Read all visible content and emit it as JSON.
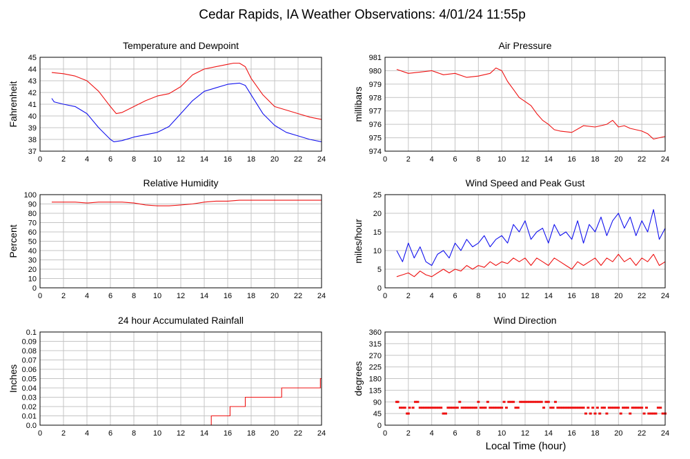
{
  "page": {
    "title": "Cedar Rapids, IA Weather Observations: 4/01/24 11:55p",
    "xlabel": "Local Time (hour)"
  },
  "colors": {
    "red": "#ee1111",
    "blue": "#1111ee",
    "grid": "#c4c4c4",
    "frame": "#000000"
  },
  "chart_data": [
    {
      "id": "temp",
      "type": "line",
      "title": "Temperature and Dewpoint",
      "ylabel": "Fahrenheit",
      "xlim": [
        0,
        24
      ],
      "ylim": [
        37,
        45
      ],
      "xticks": [
        0,
        2,
        4,
        6,
        8,
        10,
        12,
        14,
        16,
        18,
        20,
        22,
        24
      ],
      "yticks": [
        37,
        38,
        39,
        40,
        41,
        42,
        43,
        44,
        45
      ],
      "series": [
        {
          "color": "#ee1111",
          "step": false,
          "x": [
            1,
            2,
            3,
            4,
            5,
            6,
            6.5,
            7,
            8,
            9,
            10,
            11,
            12,
            13,
            14,
            15,
            16,
            16.5,
            17,
            17.5,
            18,
            19,
            20,
            21,
            22,
            23,
            24
          ],
          "y": [
            43.7,
            43.6,
            43.4,
            43.0,
            42.1,
            40.8,
            40.2,
            40.3,
            40.8,
            41.3,
            41.7,
            41.9,
            42.5,
            43.5,
            44.0,
            44.2,
            44.4,
            44.5,
            44.5,
            44.2,
            43.2,
            41.8,
            40.8,
            40.5,
            40.2,
            39.9,
            39.7
          ]
        },
        {
          "color": "#1111ee",
          "step": false,
          "x": [
            1,
            1.2,
            2,
            3,
            4,
            5,
            6,
            6.3,
            7,
            8,
            9,
            10,
            11,
            12,
            13,
            14,
            15,
            16,
            17,
            17.5,
            18,
            19,
            20,
            21,
            22,
            23,
            24
          ],
          "y": [
            41.5,
            41.2,
            41.0,
            40.8,
            40.2,
            39.0,
            38.0,
            37.8,
            37.9,
            38.2,
            38.4,
            38.6,
            39.1,
            40.2,
            41.3,
            42.1,
            42.4,
            42.7,
            42.8,
            42.6,
            41.8,
            40.2,
            39.2,
            38.6,
            38.3,
            38.0,
            37.8
          ]
        }
      ]
    },
    {
      "id": "pressure",
      "type": "line",
      "title": "Air Pressure",
      "ylabel": "millibars",
      "xlim": [
        0,
        24
      ],
      "ylim": [
        974,
        981
      ],
      "xticks": [
        0,
        2,
        4,
        6,
        8,
        10,
        12,
        14,
        16,
        18,
        20,
        22,
        24
      ],
      "yticks": [
        974,
        975,
        976,
        977,
        978,
        979,
        980,
        981
      ],
      "series": [
        {
          "color": "#ee1111",
          "step": false,
          "x": [
            1,
            2,
            3,
            4,
            5,
            6,
            7,
            8,
            9,
            9.5,
            10,
            10.5,
            11,
            11.5,
            12,
            12.5,
            13,
            13.5,
            14,
            14.5,
            15,
            16,
            17,
            18,
            19,
            19.5,
            20,
            20.5,
            21,
            22,
            22.5,
            23,
            24
          ],
          "y": [
            980.1,
            979.8,
            979.9,
            980.0,
            979.7,
            979.8,
            979.5,
            979.6,
            979.8,
            980.2,
            980.0,
            979.2,
            978.6,
            978.0,
            977.7,
            977.4,
            976.8,
            976.3,
            976.0,
            975.6,
            975.5,
            975.4,
            975.9,
            975.8,
            976.0,
            976.3,
            975.8,
            975.9,
            975.7,
            975.5,
            975.3,
            974.9,
            975.1
          ]
        }
      ]
    },
    {
      "id": "humidity",
      "type": "line",
      "title": "Relative Humidity",
      "ylabel": "Percent",
      "xlim": [
        0,
        24
      ],
      "ylim": [
        0,
        100
      ],
      "xticks": [
        0,
        2,
        4,
        6,
        8,
        10,
        12,
        14,
        16,
        18,
        20,
        22,
        24
      ],
      "yticks": [
        0,
        10,
        20,
        30,
        40,
        50,
        60,
        70,
        80,
        90,
        100
      ],
      "series": [
        {
          "color": "#ee1111",
          "step": false,
          "x": [
            1,
            2,
            3,
            4,
            5,
            6,
            7,
            8,
            9,
            10,
            11,
            12,
            13,
            14,
            15,
            16,
            17,
            18,
            19,
            20,
            21,
            22,
            23,
            24
          ],
          "y": [
            92,
            92,
            92,
            91,
            92,
            92,
            92,
            91,
            89,
            88,
            88,
            89,
            90,
            92,
            93,
            93,
            94,
            94,
            94,
            94,
            94,
            94,
            94,
            94
          ]
        }
      ]
    },
    {
      "id": "wind",
      "type": "line",
      "title": "Wind Speed and Peak Gust",
      "ylabel": "miles/hour",
      "xlim": [
        0,
        24
      ],
      "ylim": [
        0,
        25
      ],
      "xticks": [
        0,
        2,
        4,
        6,
        8,
        10,
        12,
        14,
        16,
        18,
        20,
        22,
        24
      ],
      "yticks": [
        0,
        5,
        10,
        15,
        20,
        25
      ],
      "series": [
        {
          "color": "#1111ee",
          "step": false,
          "x": [
            1,
            1.5,
            2,
            2.5,
            3,
            3.5,
            4,
            4.5,
            5,
            5.5,
            6,
            6.5,
            7,
            7.5,
            8,
            8.5,
            9,
            9.5,
            10,
            10.5,
            11,
            11.5,
            12,
            12.5,
            13,
            13.5,
            14,
            14.5,
            15,
            15.5,
            16,
            16.5,
            17,
            17.5,
            18,
            18.5,
            19,
            19.5,
            20,
            20.5,
            21,
            21.5,
            22,
            22.5,
            23,
            23.5,
            24
          ],
          "y": [
            10,
            7,
            12,
            8,
            11,
            7,
            6,
            9,
            10,
            8,
            12,
            10,
            13,
            11,
            12,
            14,
            11,
            13,
            14,
            12,
            17,
            15,
            18,
            13,
            15,
            16,
            12,
            17,
            14,
            15,
            13,
            18,
            12,
            17,
            15,
            19,
            14,
            18,
            20,
            16,
            19,
            14,
            18,
            15,
            21,
            13,
            16
          ]
        },
        {
          "color": "#ee1111",
          "step": false,
          "x": [
            1,
            1.5,
            2,
            2.5,
            3,
            3.5,
            4,
            4.5,
            5,
            5.5,
            6,
            6.5,
            7,
            7.5,
            8,
            8.5,
            9,
            9.5,
            10,
            10.5,
            11,
            11.5,
            12,
            12.5,
            13,
            13.5,
            14,
            14.5,
            15,
            15.5,
            16,
            16.5,
            17,
            17.5,
            18,
            18.5,
            19,
            19.5,
            20,
            20.5,
            21,
            21.5,
            22,
            22.5,
            23,
            23.5,
            24
          ],
          "y": [
            3,
            3.5,
            4,
            3,
            4.5,
            3.5,
            3,
            4,
            5,
            4,
            5,
            4.5,
            6,
            5,
            6,
            5.5,
            7,
            6,
            7,
            6.5,
            8,
            7,
            8,
            6,
            8,
            7,
            6,
            8,
            7,
            6,
            5,
            7,
            6,
            7,
            8,
            6,
            8,
            7,
            9,
            7,
            8,
            6,
            8,
            7,
            9,
            6,
            7
          ]
        }
      ]
    },
    {
      "id": "rain",
      "type": "line",
      "title": "24 hour Accumulated Rainfall",
      "ylabel": "Inches",
      "xlim": [
        0,
        24
      ],
      "ylim": [
        0,
        0.1
      ],
      "xticks": [
        0,
        2,
        4,
        6,
        8,
        10,
        12,
        14,
        16,
        18,
        20,
        22,
        24
      ],
      "yticks": [
        "0.0",
        "0.01",
        "0.02",
        "0.03",
        "0.04",
        "0.05",
        "0.06",
        "0.07",
        "0.08",
        "0.09",
        "0.1"
      ],
      "series": [
        {
          "color": "#ee1111",
          "step": true,
          "x": [
            1,
            14.6,
            16.2,
            17.5,
            20.6,
            23.9,
            24
          ],
          "y": [
            0,
            0.01,
            0.02,
            0.03,
            0.04,
            0.05,
            0.05
          ]
        }
      ]
    },
    {
      "id": "winddir",
      "type": "scatter",
      "title": "Wind Direction",
      "ylabel": "degrees",
      "xlim": [
        0,
        24
      ],
      "ylim": [
        0,
        360
      ],
      "xticks": [
        0,
        2,
        4,
        6,
        8,
        10,
        12,
        14,
        16,
        18,
        20,
        22,
        24
      ],
      "yticks": [
        0,
        45,
        90,
        135,
        180,
        225,
        270,
        315,
        360
      ],
      "series": [
        {
          "color": "#ee1111",
          "x": [
            1.0,
            1.1,
            1.3,
            1.5,
            1.7,
            1.9,
            2.0,
            2.1,
            2.4,
            2.6,
            2.8,
            3.0,
            3.2,
            3.4,
            3.6,
            3.8,
            4.0,
            4.2,
            4.4,
            4.6,
            4.8,
            5.0,
            5.2,
            5.4,
            5.6,
            5.8,
            6.0,
            6.2,
            6.4,
            6.6,
            6.8,
            7.0,
            7.2,
            7.4,
            7.6,
            7.8,
            8.0,
            8.2,
            8.4,
            8.6,
            8.8,
            9.0,
            9.2,
            9.4,
            9.6,
            9.8,
            10.0,
            10.2,
            10.4,
            10.6,
            10.8,
            11.0,
            11.2,
            11.4,
            11.6,
            11.8,
            12.0,
            12.2,
            12.4,
            12.6,
            12.8,
            13.0,
            13.2,
            13.4,
            13.6,
            13.8,
            14.0,
            14.2,
            14.4,
            14.6,
            14.8,
            15.0,
            15.2,
            15.4,
            15.6,
            15.8,
            16.0,
            16.2,
            16.4,
            16.6,
            16.8,
            17.0,
            17.2,
            17.4,
            17.6,
            17.8,
            18.0,
            18.2,
            18.4,
            18.6,
            18.8,
            19.0,
            19.2,
            19.4,
            19.6,
            19.8,
            20.0,
            20.2,
            20.4,
            20.6,
            20.8,
            21.0,
            21.2,
            21.4,
            21.6,
            21.8,
            22.0,
            22.2,
            22.4,
            22.6,
            22.8,
            23.0,
            23.2,
            23.4,
            23.6,
            23.8,
            24.0
          ],
          "y": [
            90,
            90,
            67.5,
            67.5,
            67.5,
            45,
            45,
            67.5,
            67.5,
            90,
            90,
            67.5,
            67.5,
            67.5,
            67.5,
            67.5,
            67.5,
            67.5,
            67.5,
            67.5,
            67.5,
            45,
            45,
            67.5,
            67.5,
            67.5,
            67.5,
            67.5,
            90,
            67.5,
            67.5,
            67.5,
            67.5,
            67.5,
            67.5,
            67.5,
            90,
            67.5,
            67.5,
            67.5,
            90,
            67.5,
            67.5,
            67.5,
            67.5,
            67.5,
            67.5,
            90,
            67.5,
            90,
            90,
            90,
            67.5,
            67.5,
            90,
            90,
            90,
            90,
            90,
            90,
            90,
            90,
            90,
            90,
            67.5,
            90,
            90,
            67.5,
            67.5,
            90,
            67.5,
            67.5,
            67.5,
            67.5,
            67.5,
            67.5,
            67.5,
            67.5,
            67.5,
            67.5,
            67.5,
            67.5,
            45,
            67.5,
            45,
            67.5,
            45,
            67.5,
            45,
            67.5,
            67.5,
            45,
            67.5,
            67.5,
            67.5,
            67.5,
            67.5,
            45,
            67.5,
            67.5,
            67.5,
            45,
            67.5,
            67.5,
            67.5,
            67.5,
            67.5,
            45,
            67.5,
            45,
            45,
            45,
            45,
            67.5,
            67.5,
            45,
            45
          ]
        }
      ]
    }
  ]
}
